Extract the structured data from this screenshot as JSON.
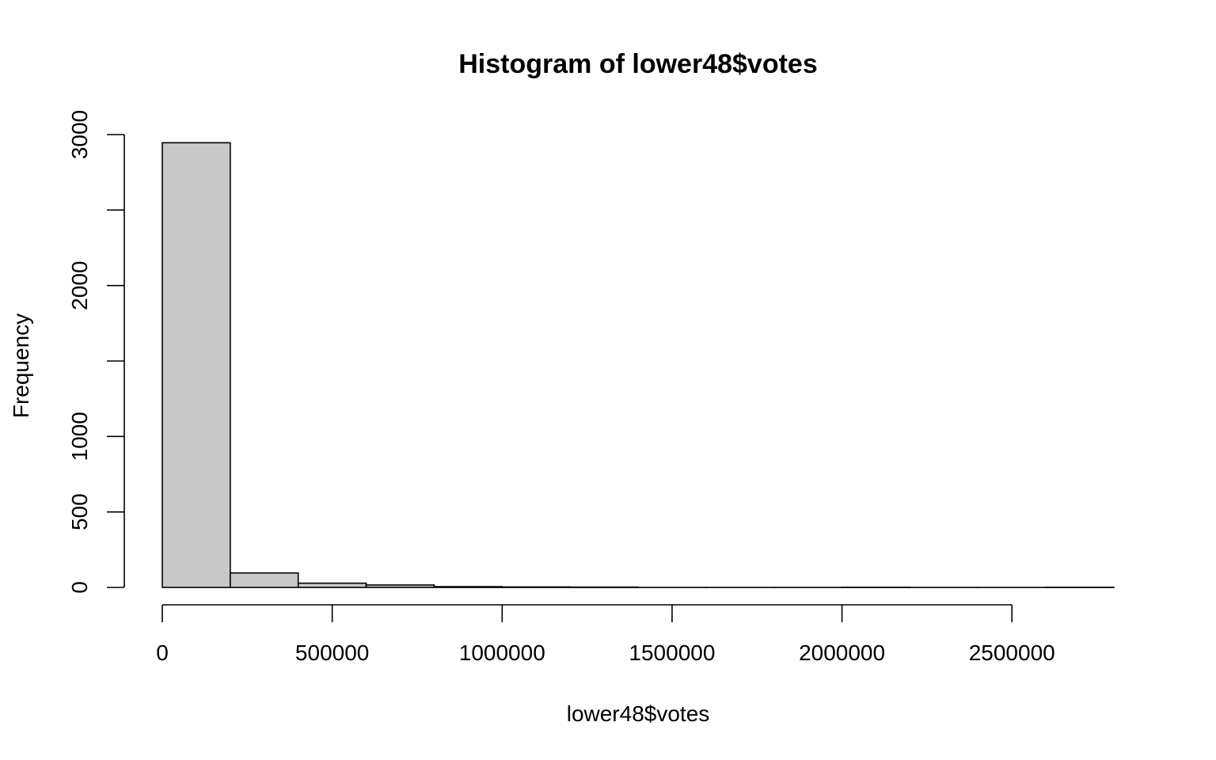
{
  "chart_data": {
    "type": "bar",
    "title": "Histogram of lower48$votes",
    "xlabel": "lower48$votes",
    "ylabel": "Frequency",
    "bin_width": 200000,
    "bins": [
      {
        "start": 0,
        "end": 200000,
        "count": 2946
      },
      {
        "start": 200000,
        "end": 400000,
        "count": 96
      },
      {
        "start": 400000,
        "end": 600000,
        "count": 28
      },
      {
        "start": 600000,
        "end": 800000,
        "count": 16
      },
      {
        "start": 800000,
        "end": 1000000,
        "count": 5
      },
      {
        "start": 1000000,
        "end": 1200000,
        "count": 3
      },
      {
        "start": 1200000,
        "end": 1400000,
        "count": 2
      },
      {
        "start": 1400000,
        "end": 1600000,
        "count": 0
      },
      {
        "start": 1600000,
        "end": 1800000,
        "count": 0
      },
      {
        "start": 1800000,
        "end": 2000000,
        "count": 0
      },
      {
        "start": 2000000,
        "end": 2200000,
        "count": 1
      },
      {
        "start": 2200000,
        "end": 2400000,
        "count": 0
      },
      {
        "start": 2400000,
        "end": 2600000,
        "count": 0
      },
      {
        "start": 2600000,
        "end": 2800000,
        "count": 1
      }
    ],
    "xlim": [
      0,
      2800000
    ],
    "ylim": [
      0,
      3000
    ],
    "x_ticks": [
      0,
      500000,
      1000000,
      1500000,
      2000000,
      2500000
    ],
    "x_tick_labels": [
      "0",
      "500000",
      "1000000",
      "1500000",
      "2000000",
      "2500000"
    ],
    "y_ticks": [
      0,
      500,
      1000,
      1500,
      2000,
      2500,
      3000
    ],
    "y_tick_labels": [
      "0",
      "500",
      "1000",
      "",
      "2000",
      "",
      "3000"
    ],
    "bar_color": "#c8c8c8",
    "grid": false
  }
}
